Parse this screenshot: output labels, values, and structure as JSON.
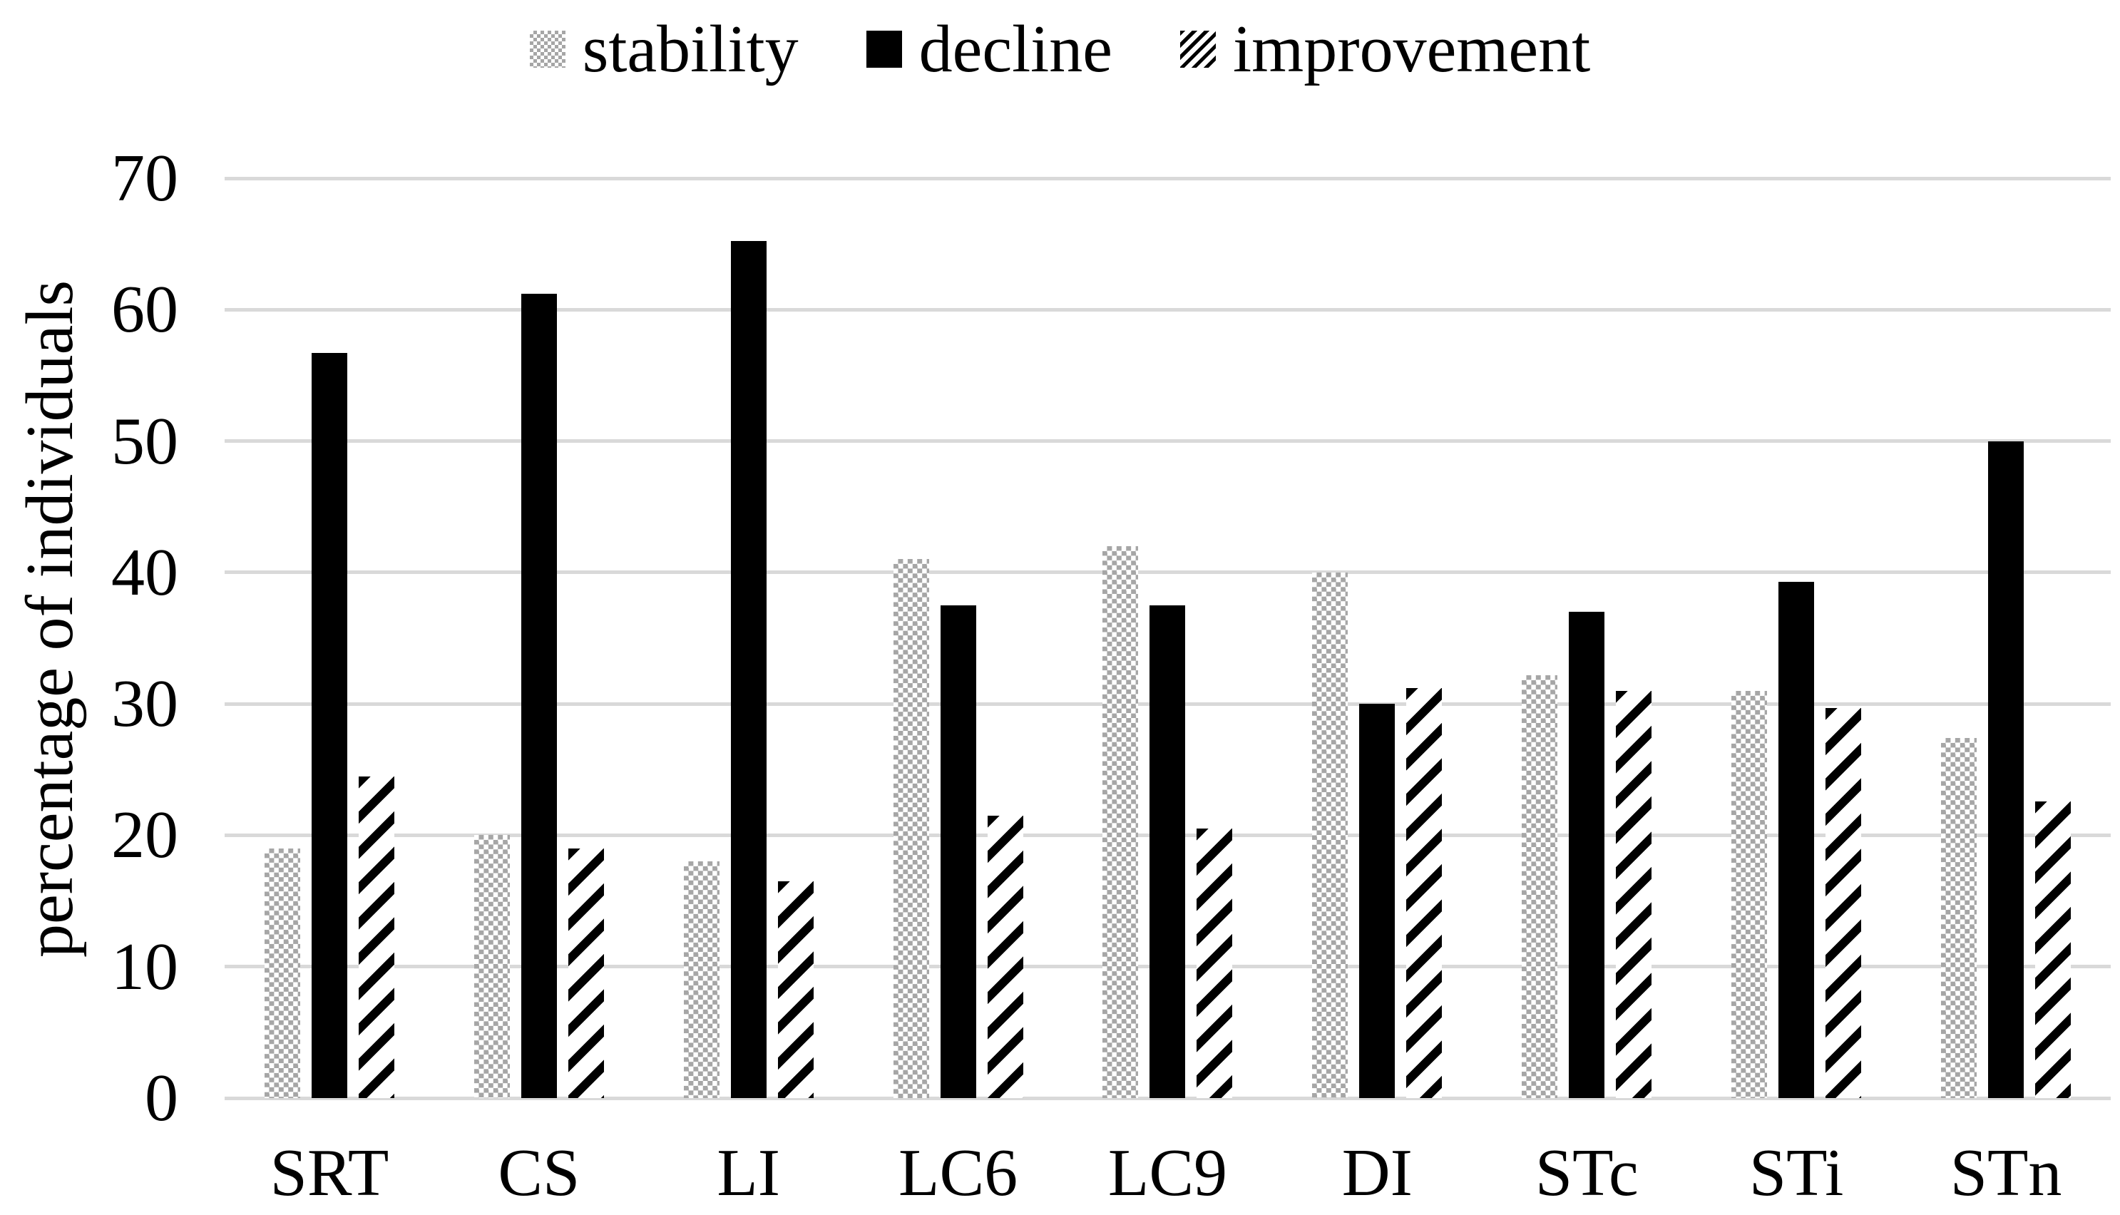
{
  "chart_data": {
    "type": "bar",
    "title": "",
    "categories": [
      "SRT",
      "CS",
      "LI",
      "LC6",
      "LC9",
      "DI",
      "STc",
      "STi",
      "STn"
    ],
    "series": [
      {
        "name": "stability",
        "pattern": "checker",
        "values": [
          19.0,
          20.0,
          18.0,
          41.0,
          42.0,
          40.0,
          32.2,
          31.0,
          27.4
        ]
      },
      {
        "name": "decline",
        "pattern": "solid",
        "values": [
          56.7,
          61.2,
          65.2,
          37.5,
          37.5,
          30.0,
          37.0,
          39.3,
          50.0
        ]
      },
      {
        "name": "improvement",
        "pattern": "stripes",
        "values": [
          24.5,
          19.0,
          16.5,
          21.5,
          20.5,
          31.2,
          31.0,
          29.7,
          22.6
        ]
      }
    ],
    "ylabel": "percentage of individuals",
    "ylim": [
      0,
      70
    ],
    "yticks": [
      0,
      10,
      20,
      30,
      40,
      50,
      60,
      70
    ],
    "grid": true,
    "legend_position": "top",
    "colors": {
      "bar_black": "#000000",
      "pattern_gray": "#a6a6a6",
      "gridline": "#d9d9d9",
      "background": "#ffffff"
    }
  }
}
